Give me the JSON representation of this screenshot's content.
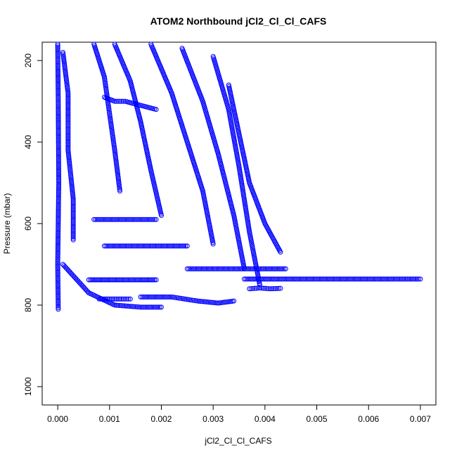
{
  "chart_data": {
    "type": "scatter",
    "title": "ATOM2 Northbound jCl2_Cl_Cl_CAFS",
    "xlabel": "jCl2_Cl_Cl_CAFS",
    "ylabel": "Pressure (mbar)",
    "xlim": [
      -0.0003,
      0.0073
    ],
    "ylim": [
      1045,
      155
    ],
    "y_reversed": true,
    "grid": false,
    "marker": "open-circle",
    "color": "#0000ff",
    "xticks": [
      0.0,
      0.001,
      0.002,
      0.003,
      0.004,
      0.005,
      0.006,
      0.007
    ],
    "xtick_labels": [
      "0.000",
      "0.001",
      "0.002",
      "0.003",
      "0.004",
      "0.005",
      "0.006",
      "0.007"
    ],
    "yticks": [
      200,
      400,
      600,
      800,
      1000
    ],
    "ytick_labels": [
      "200",
      "400",
      "600",
      "800",
      "1000"
    ],
    "series": [
      {
        "x": [
          0.0,
          1e-05,
          2e-05,
          0.0,
          1e-05
        ],
        "y": [
          160,
          300,
          500,
          700,
          810
        ]
      },
      {
        "x": [
          0.0001,
          0.0002,
          0.0002,
          0.0003,
          0.0003
        ],
        "y": [
          180,
          280,
          420,
          540,
          640
        ]
      },
      {
        "x": [
          0.0007,
          0.0009,
          0.001,
          0.0011,
          0.0012
        ],
        "y": [
          160,
          240,
          330,
          420,
          520
        ]
      },
      {
        "x": [
          0.0011,
          0.0014,
          0.0016,
          0.0018,
          0.002
        ],
        "y": [
          160,
          250,
          350,
          470,
          580
        ]
      },
      {
        "x": [
          0.0018,
          0.0022,
          0.0025,
          0.0028,
          0.003
        ],
        "y": [
          160,
          280,
          400,
          520,
          650
        ]
      },
      {
        "x": [
          0.0024,
          0.0028,
          0.0031,
          0.0034,
          0.0036
        ],
        "y": [
          170,
          300,
          430,
          580,
          710
        ]
      },
      {
        "x": [
          0.003,
          0.0033,
          0.0035,
          0.0037,
          0.0039
        ],
        "y": [
          190,
          320,
          460,
          620,
          750
        ]
      },
      {
        "x": [
          0.0033,
          0.0035,
          0.0037,
          0.004,
          0.0043
        ],
        "y": [
          260,
          380,
          500,
          600,
          670
        ]
      },
      {
        "x": [
          0.0001,
          0.0006,
          0.0011,
          0.0016,
          0.002
        ],
        "y": [
          700,
          770,
          800,
          805,
          805
        ]
      },
      {
        "x": [
          0.0016,
          0.0022,
          0.0027,
          0.0031,
          0.0034
        ],
        "y": [
          780,
          780,
          790,
          795,
          790
        ]
      },
      {
        "x": [
          0.0036,
          0.0045,
          0.0055,
          0.0065,
          0.007
        ],
        "y": [
          736,
          736,
          736,
          736,
          736
        ]
      },
      {
        "x": [
          0.0025,
          0.003,
          0.0035,
          0.004,
          0.0044
        ],
        "y": [
          711,
          711,
          711,
          711,
          711
        ]
      },
      {
        "x": [
          0.0007,
          0.001,
          0.0013,
          0.0016,
          0.0019
        ],
        "y": [
          590,
          590,
          590,
          590,
          590
        ]
      },
      {
        "x": [
          0.0009,
          0.0013,
          0.0017,
          0.0021,
          0.0025
        ],
        "y": [
          655,
          655,
          655,
          655,
          655
        ]
      },
      {
        "x": [
          0.0006,
          0.0009,
          0.0012,
          0.0016,
          0.0019
        ],
        "y": [
          738,
          738,
          738,
          738,
          738
        ]
      },
      {
        "x": [
          0.0009,
          0.0011,
          0.0013,
          0.0016,
          0.0019
        ],
        "y": [
          290,
          300,
          300,
          310,
          320
        ]
      },
      {
        "x": [
          0.0037,
          0.0039,
          0.0041,
          0.0043
        ],
        "y": [
          760,
          758,
          760,
          759
        ]
      },
      {
        "x": [
          0.0008,
          0.001,
          0.0012,
          0.0014
        ],
        "y": [
          785,
          785,
          785,
          785
        ]
      }
    ]
  }
}
